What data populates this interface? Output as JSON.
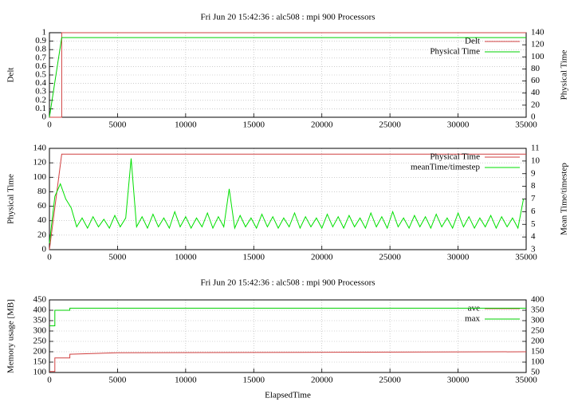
{
  "chart_data": [
    {
      "type": "line",
      "title": "Fri Jun 20 15:42:36 : alc508 : mpi 900 Processors",
      "ylabel": "Delt",
      "y2label": "Physical Time",
      "xlim": [
        0,
        35000
      ],
      "xticks": [
        0,
        5000,
        10000,
        15000,
        20000,
        25000,
        30000,
        35000
      ],
      "ylim": [
        0,
        1
      ],
      "yticks": [
        0,
        0.1,
        0.2,
        0.3,
        0.4,
        0.5,
        0.6,
        0.7,
        0.8,
        0.9,
        1
      ],
      "y2lim": [
        0,
        140
      ],
      "y2ticks": [
        0,
        20,
        40,
        60,
        80,
        100,
        120,
        140
      ],
      "grid": true,
      "legend": "upper right",
      "series": [
        {
          "name": "Delt",
          "color": "#d04040",
          "x": [
            0,
            900,
            900,
            35000
          ],
          "values": [
            0,
            0,
            1,
            1
          ]
        },
        {
          "name": "Physical Time",
          "color": "#00d000",
          "axis": "y2",
          "x": [
            0,
            900,
            35000
          ],
          "values": [
            0,
            132,
            132
          ]
        }
      ]
    },
    {
      "type": "line",
      "ylabel": "Physical Time",
      "y2label": "Mean Time/timestep",
      "xlim": [
        0,
        35000
      ],
      "xticks": [
        0,
        5000,
        10000,
        15000,
        20000,
        25000,
        30000,
        35000
      ],
      "ylim": [
        0,
        140
      ],
      "yticks": [
        0,
        20,
        40,
        60,
        80,
        100,
        120,
        140
      ],
      "y2lim": [
        3,
        11
      ],
      "y2ticks": [
        3,
        4,
        5,
        6,
        7,
        8,
        9,
        10,
        11
      ],
      "grid": true,
      "legend": "upper right",
      "series": [
        {
          "name": "Physical Time",
          "color": "#d04040",
          "x": [
            0,
            900,
            35000
          ],
          "values": [
            0,
            132,
            132
          ]
        },
        {
          "name": "meanTime/timestep",
          "color": "#00e000",
          "axis": "y2",
          "x": [
            0,
            400,
            800,
            1200,
            1600,
            2000,
            2400,
            2800,
            3200,
            3600,
            4000,
            4400,
            4800,
            5200,
            5600,
            6000,
            6400,
            6800,
            7200,
            7600,
            8000,
            8400,
            8800,
            9200,
            9600,
            10000,
            10400,
            10800,
            11200,
            11600,
            12000,
            12400,
            12800,
            13200,
            13600,
            14000,
            14400,
            14800,
            15200,
            15600,
            16000,
            16400,
            16800,
            17200,
            17600,
            18000,
            18400,
            18800,
            19200,
            19600,
            20000,
            20400,
            20800,
            21200,
            21600,
            22000,
            22400,
            22800,
            23200,
            23600,
            24000,
            24400,
            24800,
            25200,
            25600,
            26000,
            26400,
            26800,
            27200,
            27600,
            28000,
            28400,
            28800,
            29200,
            29600,
            30000,
            30400,
            30800,
            31200,
            31600,
            32000,
            32400,
            32800,
            33200,
            33600,
            34000,
            34400,
            34800
          ],
          "values": [
            3.5,
            7.2,
            8.2,
            7.0,
            6.3,
            4.8,
            5.5,
            4.7,
            5.6,
            4.8,
            5.4,
            4.7,
            5.7,
            4.8,
            5.5,
            10.2,
            4.8,
            5.6,
            4.7,
            5.8,
            4.8,
            5.5,
            4.7,
            6.0,
            4.8,
            5.6,
            4.7,
            5.5,
            4.8,
            5.9,
            4.7,
            5.6,
            4.8,
            7.8,
            4.7,
            5.7,
            4.8,
            5.5,
            4.7,
            5.8,
            4.8,
            5.6,
            4.7,
            5.5,
            4.8,
            5.9,
            4.7,
            5.6,
            4.8,
            5.5,
            4.7,
            5.8,
            4.8,
            5.6,
            4.7,
            5.7,
            4.8,
            5.5,
            4.7,
            5.9,
            4.8,
            5.6,
            4.7,
            6.0,
            4.8,
            5.5,
            4.7,
            5.7,
            4.8,
            5.6,
            4.7,
            5.8,
            4.8,
            5.5,
            4.7,
            5.9,
            4.8,
            5.6,
            4.7,
            5.5,
            4.8,
            5.7,
            4.7,
            5.6,
            4.8,
            5.5,
            4.7,
            7.0
          ]
        }
      ]
    },
    {
      "type": "line",
      "title": "Fri Jun 20 15:42:36 : alc508 : mpi 900 Processors",
      "ylabel": "Memory usage [MB]",
      "xlabel": "ElapsedTime",
      "xlim": [
        0,
        35000
      ],
      "xticks": [
        0,
        5000,
        10000,
        15000,
        20000,
        25000,
        30000,
        35000
      ],
      "ylim": [
        100,
        450
      ],
      "yticks": [
        100,
        150,
        200,
        250,
        300,
        350,
        400,
        450
      ],
      "y2lim": [
        50,
        400
      ],
      "y2ticks": [
        50,
        100,
        150,
        200,
        250,
        300,
        350,
        400
      ],
      "grid": true,
      "legend": "upper right",
      "series": [
        {
          "name": "ave",
          "color": "#d04040",
          "x": [
            0,
            400,
            400,
            1500,
            1500,
            5000,
            35000
          ],
          "values": [
            105,
            105,
            170,
            170,
            188,
            195,
            200
          ]
        },
        {
          "name": "max",
          "color": "#00d000",
          "x": [
            0,
            400,
            400,
            1500,
            1500,
            35000
          ],
          "values": [
            325,
            325,
            400,
            400,
            410,
            410
          ]
        }
      ]
    }
  ]
}
